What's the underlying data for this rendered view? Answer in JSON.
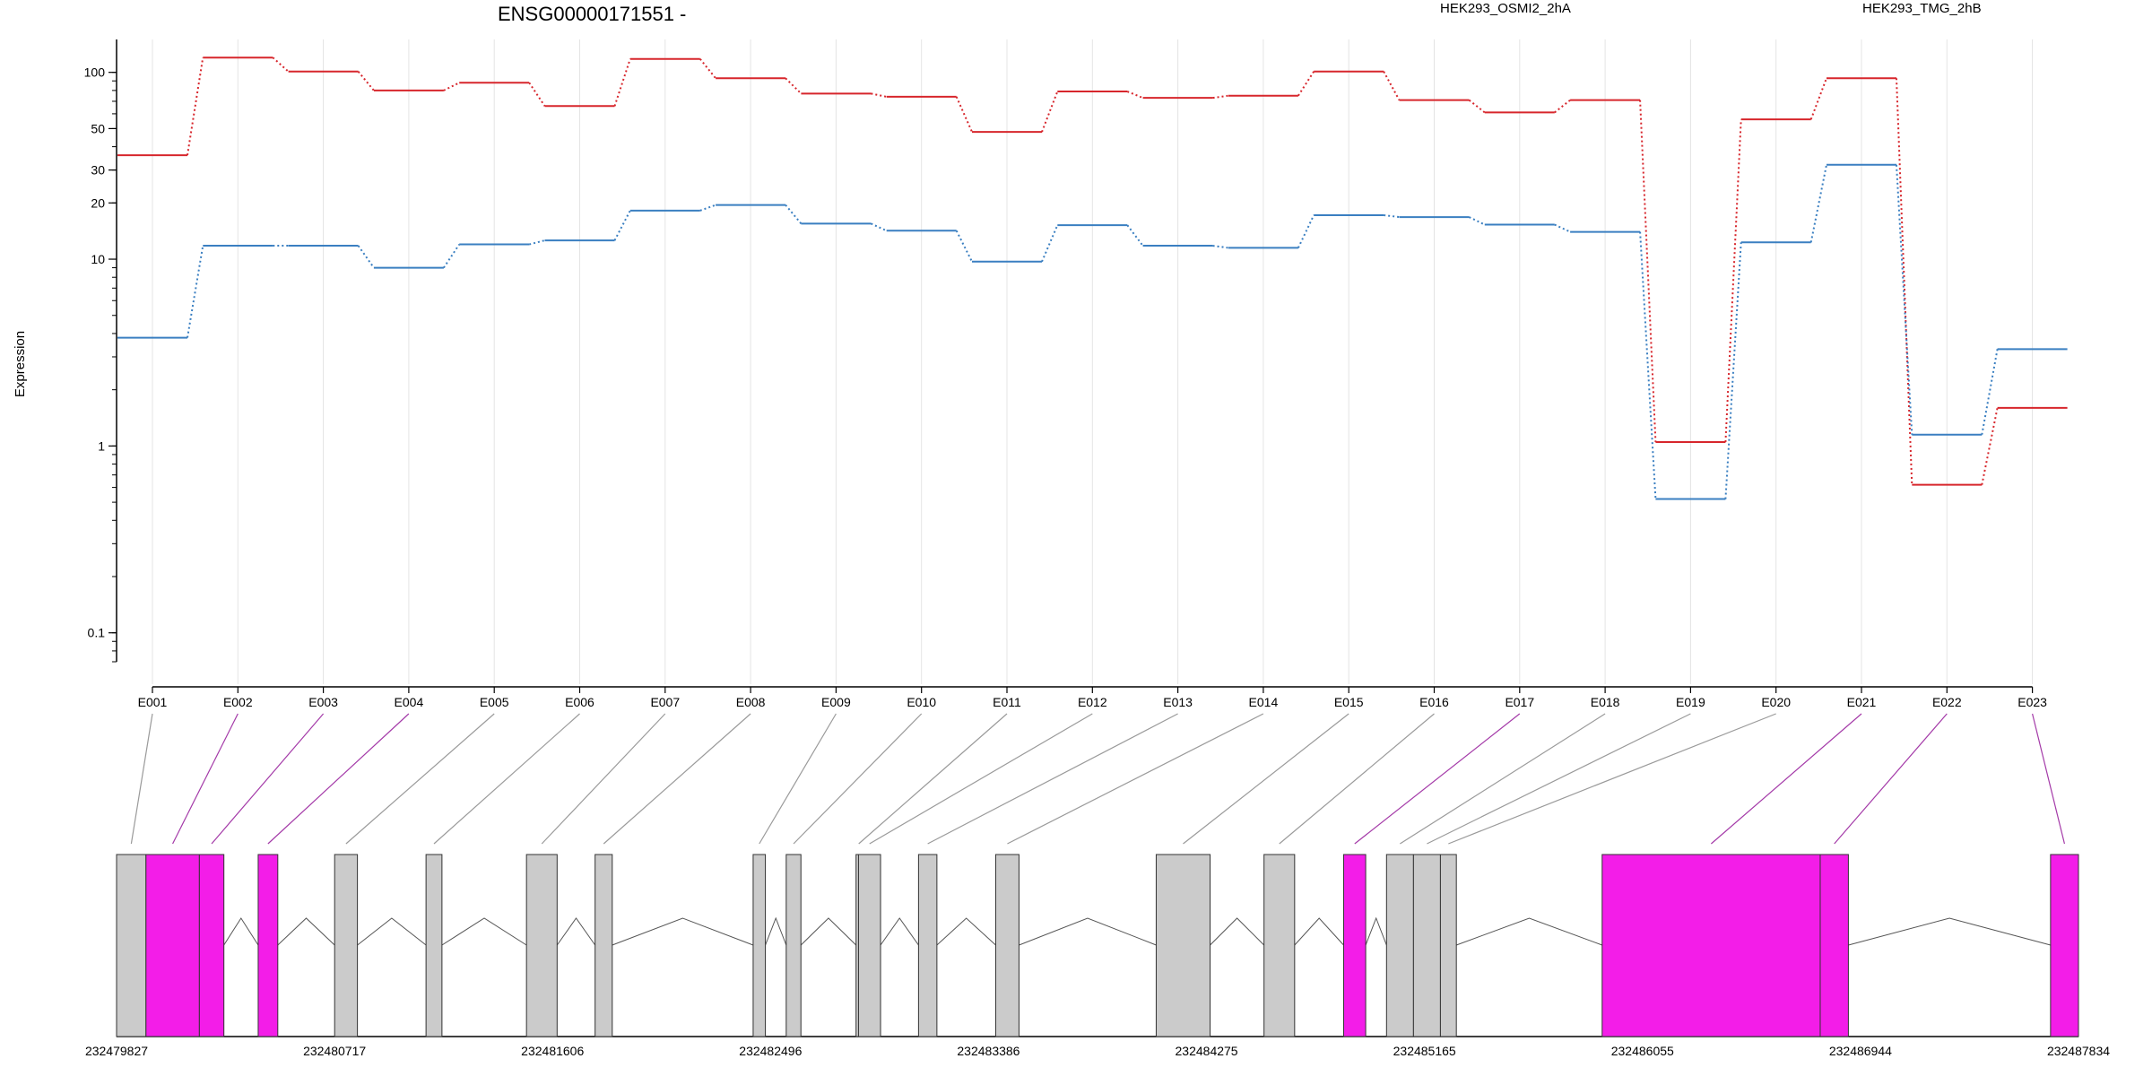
{
  "colors": {
    "series1": "#d7262c",
    "series2": "#3a7fc1",
    "highlight_exon": "#f31de8",
    "normal_exon": "#cbcbcb",
    "grid": "#e4e4e4",
    "axis": "#000000"
  },
  "chart_data": {
    "type": "line",
    "title": "ENSG00000171551 -",
    "ylabel": "Expression",
    "yscale": "log",
    "ylim": [
      0.07,
      150
    ],
    "ytick_labels": [
      "0.1",
      "1",
      "10",
      "20",
      "30",
      "50",
      "100"
    ],
    "ytick_values": [
      0.1,
      1,
      10,
      20,
      30,
      50,
      100
    ],
    "grid": "vertical",
    "legend_position": "top",
    "categories": [
      "E001",
      "E002",
      "E003",
      "E004",
      "E005",
      "E006",
      "E007",
      "E008",
      "E009",
      "E010",
      "E011",
      "E012",
      "E013",
      "E014",
      "E015",
      "E016",
      "E017",
      "E018",
      "E019",
      "E020",
      "E021",
      "E022",
      "E023"
    ],
    "series": [
      {
        "name": "HEK293_OSMI2_2hA",
        "color": "#d7262c",
        "values": [
          36,
          120,
          101,
          80,
          88,
          66,
          118,
          93,
          77,
          74,
          48,
          79,
          73,
          75,
          101,
          71,
          61,
          71,
          1.05,
          56,
          93,
          0.62,
          1.6
        ]
      },
      {
        "name": "HEK293_TMG_2hB",
        "color": "#3a7fc1",
        "values": [
          3.8,
          11.8,
          11.8,
          9.0,
          12.0,
          12.6,
          18.2,
          19.5,
          15.5,
          14.2,
          9.7,
          15.2,
          11.8,
          11.5,
          17.2,
          16.8,
          15.3,
          14.0,
          0.52,
          12.3,
          32,
          1.15,
          3.3
        ]
      }
    ],
    "gene_model": {
      "coord_labels": [
        "232479827",
        "232480717",
        "232481606",
        "232482496",
        "232483386",
        "232484275",
        "232485165",
        "232486055",
        "232486944",
        "232487834"
      ],
      "coord_range": [
        232479827,
        232487834
      ],
      "exons": [
        {
          "id": "E001",
          "start": 232479827,
          "end": 232479947,
          "highlight": false
        },
        {
          "id": "E002",
          "start": 232479947,
          "end": 232480165,
          "highlight": true
        },
        {
          "id": "E003",
          "start": 232480165,
          "end": 232480265,
          "highlight": true
        },
        {
          "id": "E004",
          "start": 232480405,
          "end": 232480485,
          "highlight": true
        },
        {
          "id": "E005",
          "start": 232480717,
          "end": 232480810,
          "highlight": false
        },
        {
          "id": "E006",
          "start": 232481090,
          "end": 232481155,
          "highlight": false
        },
        {
          "id": "E007",
          "start": 232481500,
          "end": 232481625,
          "highlight": false
        },
        {
          "id": "E008",
          "start": 232481780,
          "end": 232481850,
          "highlight": false
        },
        {
          "id": "E009",
          "start": 232482425,
          "end": 232482475,
          "highlight": false
        },
        {
          "id": "E010",
          "start": 232482560,
          "end": 232482620,
          "highlight": false
        },
        {
          "id": "E011",
          "start": 232482845,
          "end": 232482855,
          "highlight": false
        },
        {
          "id": "E012",
          "start": 232482855,
          "end": 232482945,
          "highlight": false
        },
        {
          "id": "E013",
          "start": 232483100,
          "end": 232483175,
          "highlight": false
        },
        {
          "id": "E014",
          "start": 232483415,
          "end": 232483510,
          "highlight": false
        },
        {
          "id": "E015",
          "start": 232484070,
          "end": 232484290,
          "highlight": false
        },
        {
          "id": "E016",
          "start": 232484510,
          "end": 232484635,
          "highlight": false
        },
        {
          "id": "E017",
          "start": 232484835,
          "end": 232484925,
          "highlight": true
        },
        {
          "id": "E018",
          "start": 232485010,
          "end": 232485120,
          "highlight": false
        },
        {
          "id": "E019",
          "start": 232485120,
          "end": 232485230,
          "highlight": false
        },
        {
          "id": "E020",
          "start": 232485230,
          "end": 232485295,
          "highlight": false
        },
        {
          "id": "E021",
          "start": 232485890,
          "end": 232486780,
          "highlight": true
        },
        {
          "id": "E022",
          "start": 232486780,
          "end": 232486895,
          "highlight": true
        },
        {
          "id": "E023",
          "start": 232487720,
          "end": 232487834,
          "highlight": true
        }
      ]
    }
  }
}
